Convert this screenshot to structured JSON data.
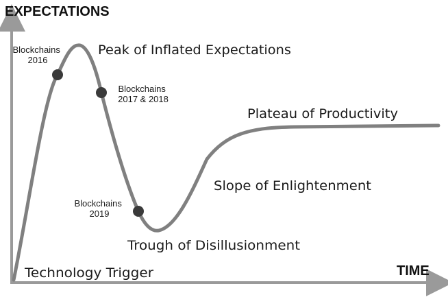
{
  "axes": {
    "y_label": "EXPECTATIONS",
    "x_label": "TIME"
  },
  "phases": {
    "technology_trigger": "Technology Trigger",
    "peak": "Peak of Inflated Expectations",
    "trough": "Trough of Disillusionment",
    "slope": "Slope of Enlightenment",
    "plateau": "Plateau of Productivity"
  },
  "markers": [
    {
      "label_line1": "Blockchains",
      "label_line2": "2016"
    },
    {
      "label_line1": "Blockchains",
      "label_line2": "2017 & 2018"
    },
    {
      "label_line1": "Blockchains",
      "label_line2": "2019"
    }
  ],
  "colors": {
    "curve": "#808080",
    "axis": "#9a9a9a",
    "marker": "#3a3a3a",
    "text": "#1a1a1a"
  }
}
